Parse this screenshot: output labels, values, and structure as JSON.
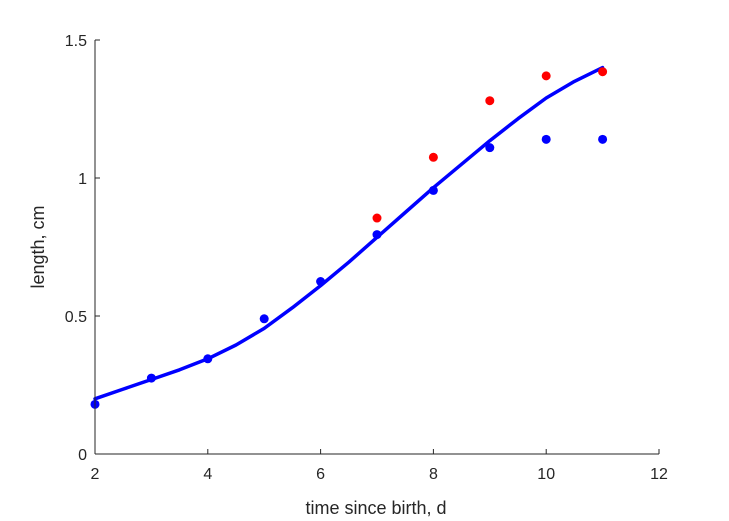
{
  "chart_data": {
    "type": "scatter",
    "xlabel": "time since birth, d",
    "ylabel": "length, cm",
    "xlim": [
      2,
      12
    ],
    "ylim": [
      0,
      1.5
    ],
    "xticks": [
      2,
      4,
      6,
      8,
      10,
      12
    ],
    "xtick_labels": [
      "2",
      "4",
      "6",
      "8",
      "10",
      "12"
    ],
    "yticks": [
      0,
      0.5,
      1,
      1.5
    ],
    "ytick_labels": [
      "0",
      "0.5",
      "1",
      "1.5"
    ],
    "grid": false,
    "box": "open",
    "series": [
      {
        "kind": "points",
        "color": "#ff0000",
        "points": [
          [
            7,
            0.855
          ],
          [
            8,
            1.075
          ],
          [
            9,
            1.28
          ],
          [
            10,
            1.37
          ],
          [
            11,
            1.385
          ]
        ]
      },
      {
        "kind": "points",
        "color": "#0000ff",
        "points": [
          [
            2,
            0.18
          ],
          [
            3,
            0.275
          ],
          [
            4,
            0.345
          ],
          [
            5,
            0.49
          ],
          [
            6,
            0.625
          ],
          [
            7,
            0.795
          ],
          [
            8,
            0.955
          ],
          [
            9,
            1.11
          ],
          [
            10,
            1.14
          ],
          [
            11,
            1.14
          ]
        ]
      },
      {
        "kind": "line",
        "color": "#0000ff",
        "points": [
          [
            2,
            0.2
          ],
          [
            2.5,
            0.235
          ],
          [
            3,
            0.27
          ],
          [
            3.5,
            0.305
          ],
          [
            4,
            0.345
          ],
          [
            4.5,
            0.395
          ],
          [
            5,
            0.455
          ],
          [
            5.5,
            0.53
          ],
          [
            6,
            0.61
          ],
          [
            6.5,
            0.695
          ],
          [
            7,
            0.785
          ],
          [
            7.5,
            0.875
          ],
          [
            8,
            0.965
          ],
          [
            8.5,
            1.05
          ],
          [
            9,
            1.135
          ],
          [
            9.5,
            1.215
          ],
          [
            10,
            1.29
          ],
          [
            10.5,
            1.35
          ],
          [
            11,
            1.4
          ]
        ]
      }
    ]
  }
}
